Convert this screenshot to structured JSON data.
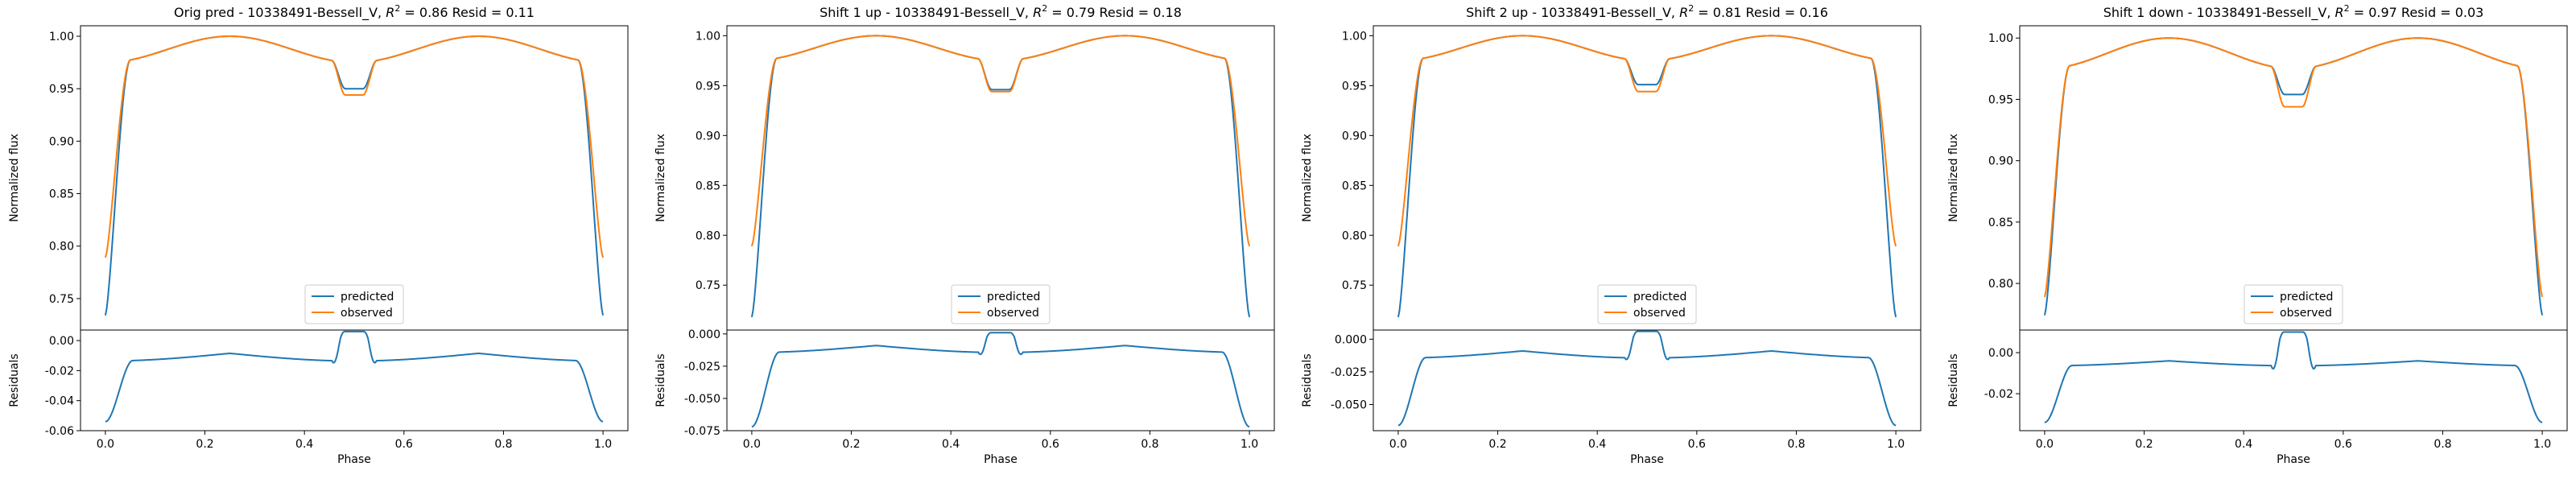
{
  "colors": {
    "predicted": "#1f77b4",
    "observed": "#ff7f0e",
    "axis": "#000000",
    "background": "#ffffff"
  },
  "icons": [],
  "chart_data": [
    {
      "type": "line",
      "title_prefix": "Orig pred - 10338491-Bessell_V, ",
      "r2_symbol": "R",
      "r2_exp": "2",
      "title_suffix": " = 0.86 Resid = 0.11",
      "ylabel_top": "Normalized flux",
      "ylabel_bottom": "Residuals",
      "xlabel": "Phase",
      "legend": [
        "predicted",
        "observed"
      ],
      "legend_loc": "lower center",
      "xlim": [
        -0.05,
        1.05
      ],
      "xticks": [
        "0.0",
        "0.2",
        "0.4",
        "0.6",
        "0.8",
        "1.0"
      ],
      "top_ylim": [
        0.72,
        1.01
      ],
      "top_yticks": [
        "0.75",
        "0.80",
        "0.85",
        "0.90",
        "0.95",
        "1.00"
      ],
      "bottom_ylim": [
        -0.06,
        0.007
      ],
      "bottom_yticks": [
        "0.00",
        "-0.02",
        "-0.04",
        "-0.06"
      ],
      "predicted": {
        "a": 0.734,
        "eclipse_min": 0.95
      },
      "observed": {
        "a": 0.789,
        "eclipse_min": 0.944
      },
      "residuals": {
        "out_level": -0.0085,
        "edge_level": -0.054,
        "eclipse_level": 0.006
      }
    },
    {
      "type": "line",
      "title_prefix": "Shift 1 up - 10338491-Bessell_V, ",
      "r2_symbol": "R",
      "r2_exp": "2",
      "title_suffix": " = 0.79 Resid = 0.18",
      "ylabel_top": "Normalized flux",
      "ylabel_bottom": "Residuals",
      "xlabel": "Phase",
      "legend": [
        "predicted",
        "observed"
      ],
      "legend_loc": "lower center",
      "xlim": [
        -0.05,
        1.05
      ],
      "xticks": [
        "0.0",
        "0.2",
        "0.4",
        "0.6",
        "0.8",
        "1.0"
      ],
      "top_ylim": [
        0.705,
        1.01
      ],
      "top_yticks": [
        "0.75",
        "0.80",
        "0.85",
        "0.90",
        "0.95",
        "1.00"
      ],
      "bottom_ylim": [
        -0.075,
        0.003
      ],
      "bottom_yticks": [
        "0.000",
        "-0.025",
        "-0.050",
        "-0.075"
      ],
      "predicted": {
        "a": 0.718,
        "eclipse_min": 0.946
      },
      "observed": {
        "a": 0.789,
        "eclipse_min": 0.944
      },
      "residuals": {
        "out_level": -0.009,
        "edge_level": -0.072,
        "eclipse_level": 0.001
      }
    },
    {
      "type": "line",
      "title_prefix": "Shift 2 up - 10338491-Bessell_V, ",
      "r2_symbol": "R",
      "r2_exp": "2",
      "title_suffix": " = 0.81 Resid = 0.16",
      "ylabel_top": "Normalized flux",
      "ylabel_bottom": "Residuals",
      "xlabel": "Phase",
      "legend": [
        "predicted",
        "observed"
      ],
      "legend_loc": "lower center",
      "xlim": [
        -0.05,
        1.05
      ],
      "xticks": [
        "0.0",
        "0.2",
        "0.4",
        "0.6",
        "0.8",
        "1.0"
      ],
      "top_ylim": [
        0.705,
        1.01
      ],
      "top_yticks": [
        "0.75",
        "0.80",
        "0.85",
        "0.90",
        "0.95",
        "1.00"
      ],
      "bottom_ylim": [
        -0.07,
        0.007
      ],
      "bottom_yticks": [
        "0.000",
        "-0.025",
        "-0.050"
      ],
      "predicted": {
        "a": 0.718,
        "eclipse_min": 0.951
      },
      "observed": {
        "a": 0.789,
        "eclipse_min": 0.944
      },
      "residuals": {
        "out_level": -0.009,
        "edge_level": -0.066,
        "eclipse_level": 0.006
      }
    },
    {
      "type": "line",
      "title_prefix": "Shift 1 down - 10338491-Bessell_V, ",
      "r2_symbol": "R",
      "r2_exp": "2",
      "title_suffix": " = 0.97 Resid = 0.03",
      "ylabel_top": "Normalized flux",
      "ylabel_bottom": "Residuals",
      "xlabel": "Phase",
      "legend": [
        "predicted",
        "observed"
      ],
      "legend_loc": "lower center",
      "xlim": [
        -0.05,
        1.05
      ],
      "xticks": [
        "0.0",
        "0.2",
        "0.4",
        "0.6",
        "0.8",
        "1.0"
      ],
      "top_ylim": [
        0.762,
        1.01
      ],
      "top_yticks": [
        "0.80",
        "0.85",
        "0.90",
        "0.95",
        "1.00"
      ],
      "bottom_ylim": [
        -0.038,
        0.011
      ],
      "bottom_yticks": [
        "0.00",
        "-0.02"
      ],
      "predicted": {
        "a": 0.774,
        "eclipse_min": 0.954
      },
      "observed": {
        "a": 0.789,
        "eclipse_min": 0.944
      },
      "residuals": {
        "out_level": -0.004,
        "edge_level": -0.034,
        "eclipse_level": 0.01
      }
    }
  ]
}
